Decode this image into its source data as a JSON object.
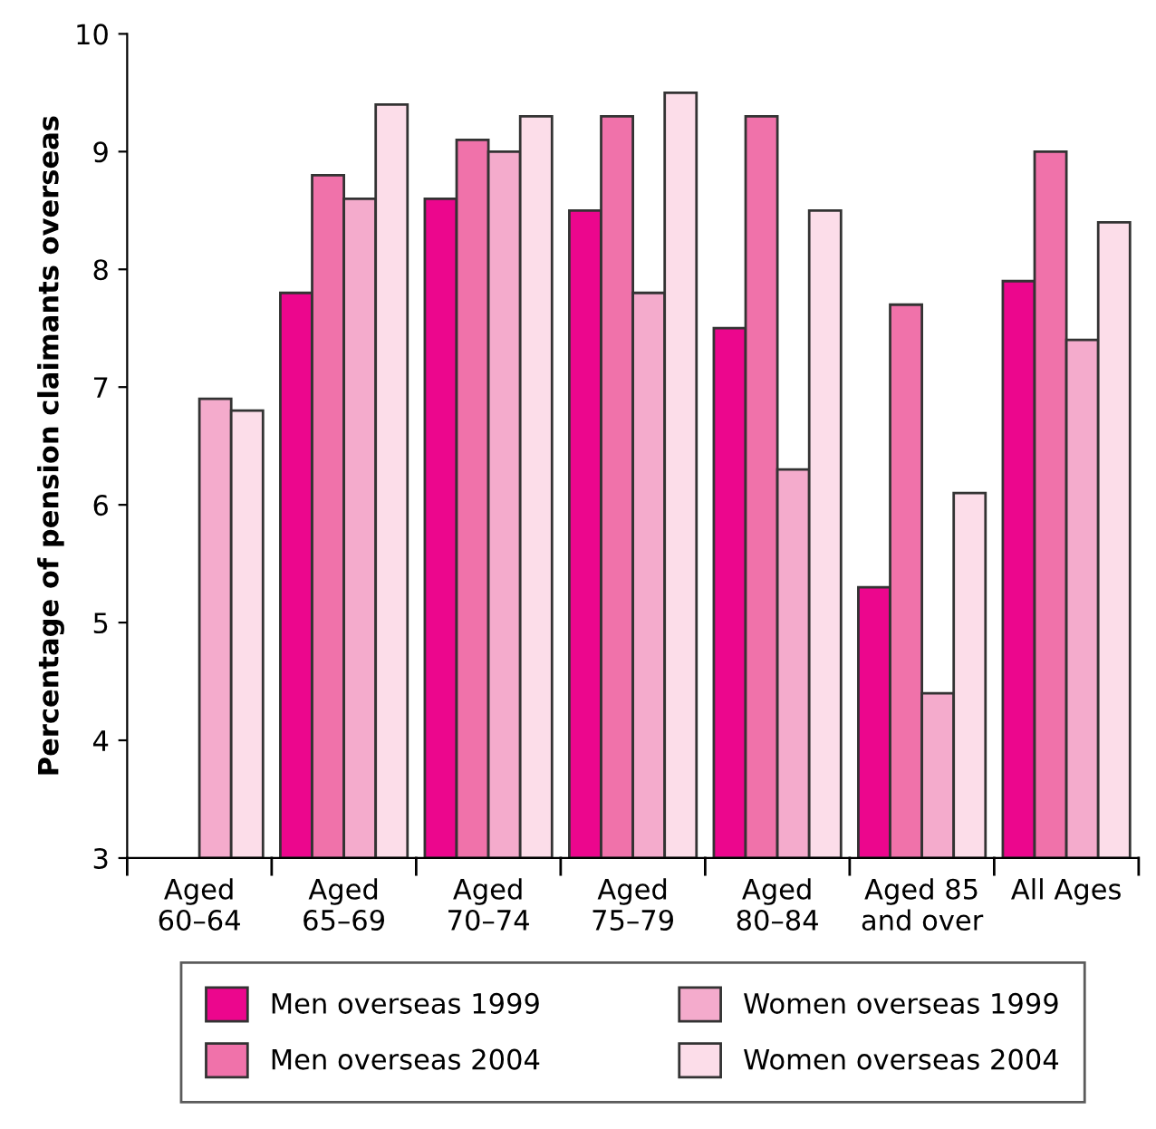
{
  "chart_data": {
    "type": "bar",
    "ylabel": "Percentage of pension claimants overseas",
    "categories": [
      "Aged\n60–64",
      "Aged\n65–69",
      "Aged\n70–74",
      "Aged\n75–79",
      "Aged\n80–84",
      "Aged 85\nand over",
      "All Ages"
    ],
    "series": [
      {
        "name": "Men overseas 1999",
        "color": "#ec068d",
        "values": [
          null,
          7.8,
          8.6,
          8.5,
          7.5,
          5.3,
          7.9
        ]
      },
      {
        "name": "Men overseas 2004",
        "color": "#f072aa",
        "values": [
          null,
          8.8,
          9.1,
          9.3,
          9.3,
          7.7,
          9.0
        ]
      },
      {
        "name": "Women overseas 1999",
        "color": "#f4abcc",
        "values": [
          6.9,
          8.6,
          9.0,
          7.8,
          6.3,
          4.4,
          7.4
        ]
      },
      {
        "name": "Women overseas 2004",
        "color": "#fcdde9",
        "values": [
          6.8,
          9.4,
          9.3,
          9.5,
          8.5,
          6.1,
          8.4
        ]
      }
    ],
    "ylim": [
      3,
      10
    ],
    "yticks": [
      3,
      4,
      5,
      6,
      7,
      8,
      9,
      10
    ],
    "grid": false,
    "legend": "bottom"
  }
}
